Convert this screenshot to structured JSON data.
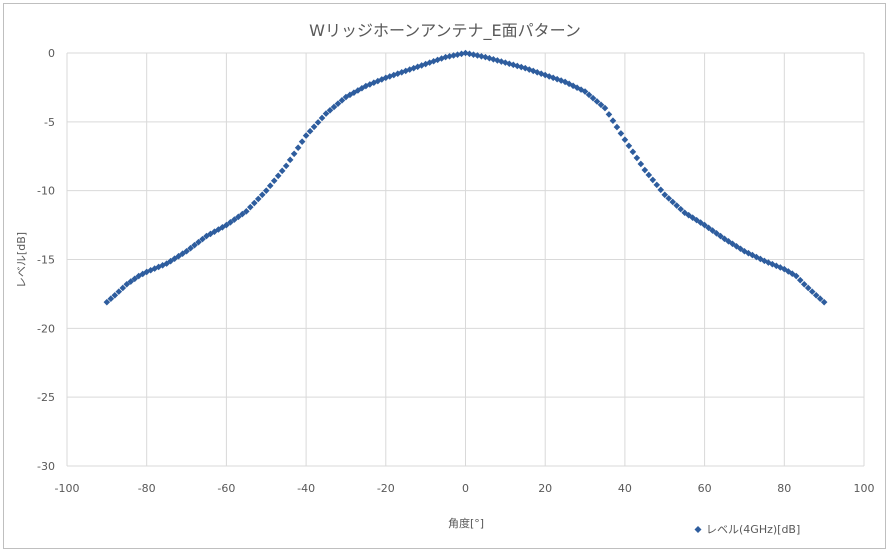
{
  "chart_data": {
    "type": "scatter",
    "title": "Wリッジホーンアンテナ_E面パターン",
    "xlabel": "角度[°]",
    "ylabel": "レベル[dB]",
    "xlim": [
      -100,
      100
    ],
    "ylim": [
      -30,
      0
    ],
    "x_ticks": [
      "-100",
      "-80",
      "-60",
      "-40",
      "-20",
      "0",
      "20",
      "40",
      "60",
      "80",
      "100"
    ],
    "y_ticks": [
      "0",
      "-5",
      "-10",
      "-15",
      "-20",
      "-25",
      "-30"
    ],
    "grid": true,
    "legend_position": "bottom-right",
    "series": [
      {
        "name": "レベル(4GHz)[dB]",
        "color": "#2e5d9e",
        "marker": "diamond",
        "x_start": -90,
        "x_end": 90,
        "x_step": 1,
        "key_points": [
          [
            -90,
            -18.1
          ],
          [
            -88,
            -17.6
          ],
          [
            -85,
            -16.8
          ],
          [
            -82,
            -16.2
          ],
          [
            -80,
            -15.9
          ],
          [
            -75,
            -15.3
          ],
          [
            -70,
            -14.4
          ],
          [
            -65,
            -13.3
          ],
          [
            -60,
            -12.5
          ],
          [
            -55,
            -11.5
          ],
          [
            -50,
            -10.0
          ],
          [
            -45,
            -8.2
          ],
          [
            -40,
            -6.0
          ],
          [
            -35,
            -4.4
          ],
          [
            -30,
            -3.2
          ],
          [
            -25,
            -2.4
          ],
          [
            -20,
            -1.8
          ],
          [
            -15,
            -1.3
          ],
          [
            -10,
            -0.8
          ],
          [
            -5,
            -0.3
          ],
          [
            0,
            0.0
          ],
          [
            5,
            -0.3
          ],
          [
            10,
            -0.7
          ],
          [
            15,
            -1.1
          ],
          [
            20,
            -1.6
          ],
          [
            25,
            -2.1
          ],
          [
            30,
            -2.8
          ],
          [
            35,
            -4.0
          ],
          [
            40,
            -6.3
          ],
          [
            45,
            -8.5
          ],
          [
            50,
            -10.3
          ],
          [
            55,
            -11.6
          ],
          [
            60,
            -12.5
          ],
          [
            65,
            -13.5
          ],
          [
            70,
            -14.4
          ],
          [
            75,
            -15.1
          ],
          [
            80,
            -15.7
          ],
          [
            83,
            -16.2
          ],
          [
            85,
            -16.8
          ],
          [
            88,
            -17.6
          ],
          [
            90,
            -18.1
          ]
        ]
      }
    ]
  }
}
